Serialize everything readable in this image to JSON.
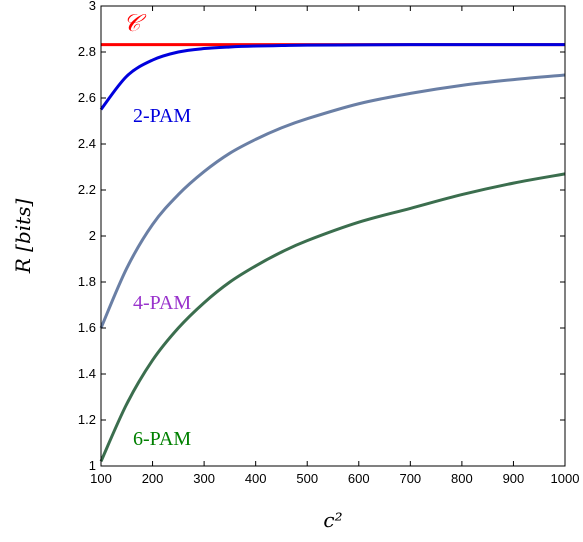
{
  "chart_data": {
    "type": "line",
    "xlabel": "c²",
    "ylabel": "R [bits]",
    "xlim": [
      100,
      1000
    ],
    "ylim": [
      1,
      3
    ],
    "x_ticks": [
      "100",
      "200",
      "300",
      "400",
      "500",
      "600",
      "700",
      "800",
      "900",
      "1000"
    ],
    "y_ticks": [
      "1",
      "1.2",
      "1.4",
      "1.6",
      "1.8",
      "2",
      "2.2",
      "2.4",
      "2.6",
      "2.8",
      "3"
    ],
    "grid": false,
    "legend": "none (inline labels)",
    "x": [
      100,
      150,
      200,
      250,
      300,
      350,
      400,
      450,
      500,
      600,
      700,
      800,
      900,
      1000
    ],
    "series": [
      {
        "name": "𝒞",
        "color": "#ff0000",
        "values": [
          2.832,
          2.832,
          2.832,
          2.832,
          2.832,
          2.832,
          2.832,
          2.832,
          2.832,
          2.832,
          2.832,
          2.832,
          2.832,
          2.832
        ]
      },
      {
        "name": "2-PAM",
        "color": "#0000dd",
        "values": [
          2.55,
          2.695,
          2.765,
          2.8,
          2.815,
          2.822,
          2.826,
          2.828,
          2.83,
          2.831,
          2.832,
          2.832,
          2.832,
          2.832
        ]
      },
      {
        "name": "4-PAM",
        "color": "#6a7fa5",
        "values": [
          1.6,
          1.86,
          2.05,
          2.18,
          2.28,
          2.36,
          2.42,
          2.47,
          2.51,
          2.575,
          2.62,
          2.655,
          2.68,
          2.7
        ]
      },
      {
        "name": "6-PAM",
        "color": "#3b6e4e",
        "values": [
          1.02,
          1.27,
          1.46,
          1.6,
          1.71,
          1.8,
          1.87,
          1.93,
          1.98,
          2.06,
          2.12,
          2.18,
          2.23,
          2.27
        ]
      }
    ],
    "label_colors": {
      "2-PAM": "#0000dd",
      "4-PAM": "#9933cc",
      "6-PAM": "#008000",
      "𝒞": "#ff0000"
    }
  }
}
